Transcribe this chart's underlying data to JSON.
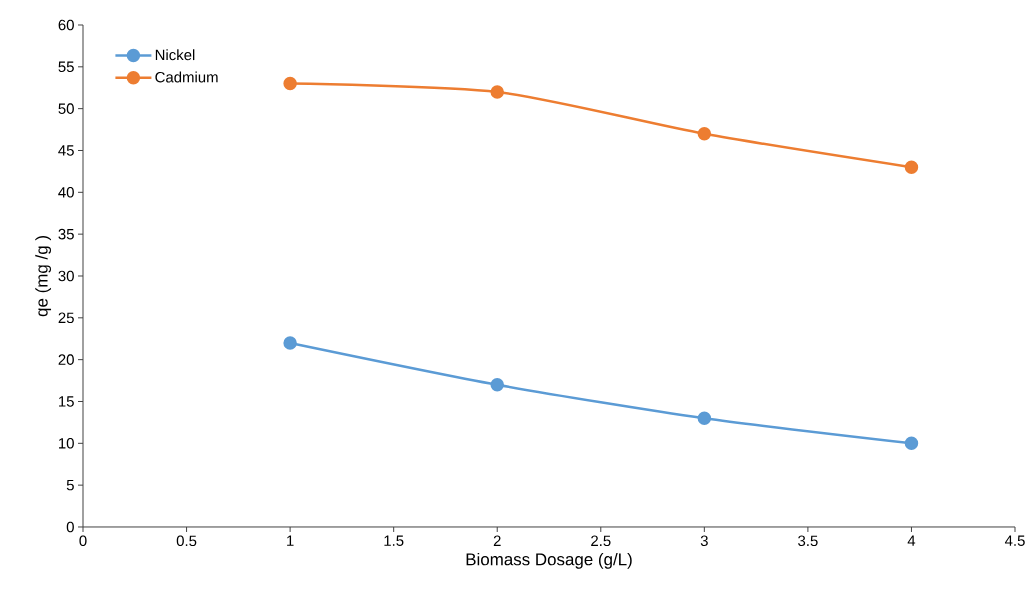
{
  "chart_data": {
    "type": "line",
    "xlabel": "Biomass Dosage (g/L)",
    "ylabel": "qe (mg /g )",
    "x": [
      1,
      2,
      3,
      4
    ],
    "series": [
      {
        "name": "Nickel",
        "color": "#5b9bd5",
        "values": [
          22,
          17,
          13,
          10
        ]
      },
      {
        "name": "Cadmium",
        "color": "#ed7d31",
        "values": [
          53,
          52,
          47,
          43
        ]
      }
    ],
    "xlim": [
      0,
      4.5
    ],
    "xticks": [
      0,
      0.5,
      1,
      1.5,
      2,
      2.5,
      3,
      3.5,
      4,
      4.5
    ],
    "ylim": [
      0,
      60
    ],
    "yticks": [
      0,
      5,
      10,
      15,
      20,
      25,
      30,
      35,
      40,
      45,
      50,
      55,
      60
    ],
    "grid": false,
    "legend": "top left",
    "marker": "circle",
    "line_style": "solid"
  }
}
